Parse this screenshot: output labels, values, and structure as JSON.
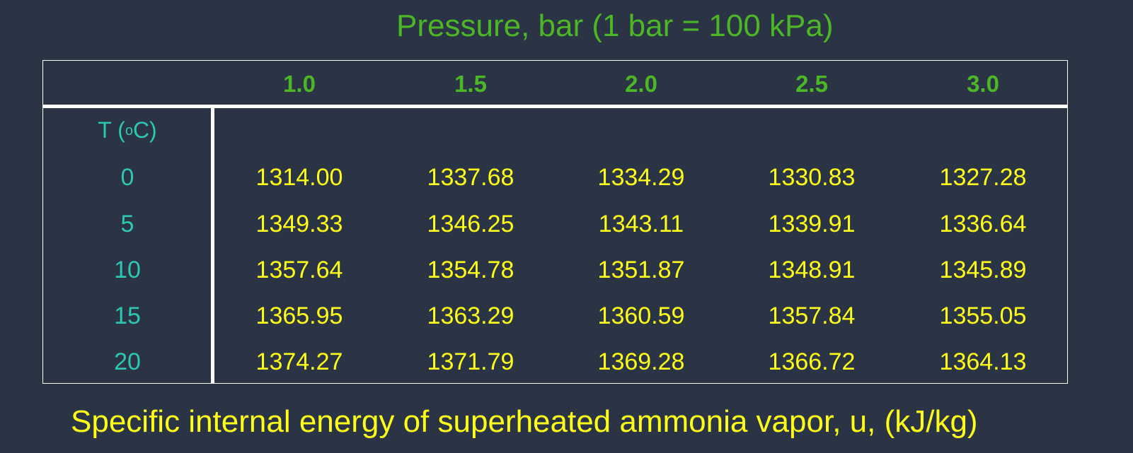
{
  "title": "Pressure, bar (1 bar = 100 kPa)",
  "table": {
    "pressures": [
      "1.0",
      "1.5",
      "2.0",
      "2.5",
      "3.0"
    ],
    "row_header": {
      "main": "T (",
      "sup": "o",
      "unit": "C)"
    },
    "rows": [
      {
        "t": "0",
        "values": [
          "1314.00",
          "1337.68",
          "1334.29",
          "1330.83",
          "1327.28"
        ]
      },
      {
        "t": "5",
        "values": [
          "1349.33",
          "1346.25",
          "1343.11",
          "1339.91",
          "1336.64"
        ]
      },
      {
        "t": "10",
        "values": [
          "1357.64",
          "1354.78",
          "1351.87",
          "1348.91",
          "1345.89"
        ]
      },
      {
        "t": "15",
        "values": [
          "1365.95",
          "1363.29",
          "1360.59",
          "1357.84",
          "1355.05"
        ]
      },
      {
        "t": "20",
        "values": [
          "1374.27",
          "1371.79",
          "1369.28",
          "1366.72",
          "1364.13"
        ]
      }
    ]
  },
  "caption": "Specific internal energy of superheated ammonia vapor,  u, (kJ/kg)",
  "colors": {
    "background": "#2a3444",
    "title_green": "#4db626",
    "row_header_teal": "#2ec7b4",
    "values_yellow": "#ffff1a",
    "grid_white": "#ffffff"
  }
}
